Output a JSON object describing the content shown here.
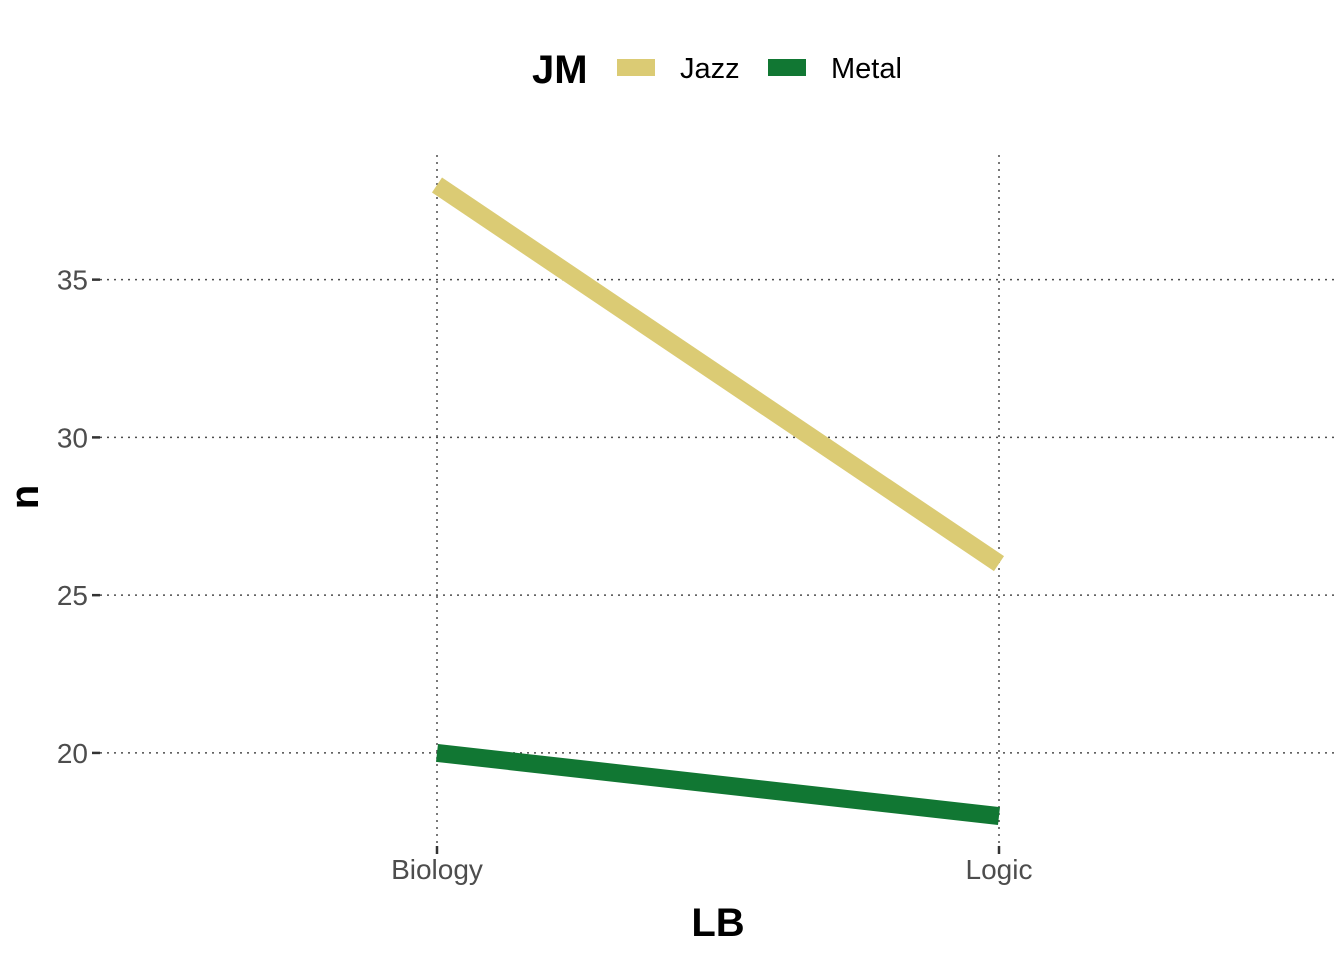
{
  "chart_data": {
    "type": "line",
    "title": "",
    "xlabel": "LB",
    "ylabel": "n",
    "categories": [
      "Biology",
      "Logic"
    ],
    "y_ticks": [
      "20",
      "25",
      "30",
      "35"
    ],
    "ylim": [
      17.05,
      38.95
    ],
    "grid": true,
    "legend": {
      "title": "JM",
      "position": "top"
    },
    "series": [
      {
        "name": "Jazz",
        "values": [
          38,
          26
        ],
        "color": "#dbcb74"
      },
      {
        "name": "Metal",
        "values": [
          20,
          18
        ],
        "color": "#117733"
      }
    ]
  }
}
